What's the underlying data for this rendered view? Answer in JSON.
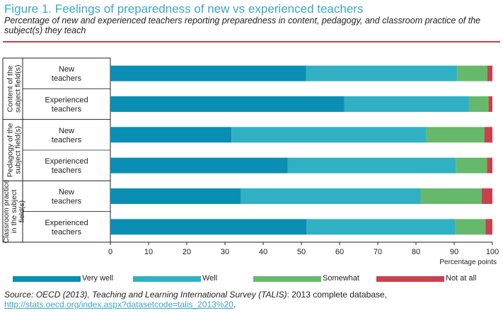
{
  "figure": {
    "title": "Figure 1. Feelings of preparedness of new vs experienced teachers",
    "subtitle": "Percentage of new and experienced teachers reporting preparedness in content, pedagogy, and classroom practice of the subject(s) they teach"
  },
  "chart_data": {
    "type": "bar",
    "orientation": "horizontal",
    "stacked": true,
    "groups": [
      {
        "name": "Content of the subject field(s)",
        "rows": [
          "New teachers",
          "Experienced teachers"
        ]
      },
      {
        "name": "Pedagogy of the subject field(s)",
        "rows": [
          "New teachers",
          "Experienced teachers"
        ]
      },
      {
        "name": "Classroom practice in the subject field(s)",
        "rows": [
          "New teachers",
          "Experienced teachers"
        ]
      }
    ],
    "categories": [
      "New teachers",
      "Experienced teachers",
      "New teachers",
      "Experienced teachers",
      "New teachers",
      "Experienced teachers"
    ],
    "series": [
      {
        "name": "Very well",
        "color": "#0b8eb3",
        "values": [
          51.2,
          61.2,
          31.7,
          46.4,
          34.2,
          51.3
        ]
      },
      {
        "name": "Well",
        "color": "#30b1c3",
        "values": [
          39.6,
          32.8,
          51.0,
          44.0,
          47.0,
          39.0
        ]
      },
      {
        "name": "Somewhat",
        "color": "#66b96b",
        "values": [
          7.9,
          5.0,
          15.2,
          8.2,
          16.0,
          7.9
        ]
      },
      {
        "name": "Not at all",
        "color": "#c9414f",
        "values": [
          1.3,
          1.0,
          2.1,
          1.4,
          2.8,
          1.8
        ]
      }
    ],
    "xlabel": "Percentage points",
    "xlim": [
      0,
      100
    ],
    "xticks": [
      0,
      10,
      20,
      30,
      40,
      50,
      60,
      70,
      80,
      90,
      100
    ],
    "grid": false,
    "legend_position": "bottom"
  },
  "source": {
    "prefix": "Source: OECD (2013), ",
    "title": "Teaching and Learning International Survey (TALIS)",
    "db": ": 2013 complete database, ",
    "url": "http://stats.oecd.org/index.aspx?datasetcode=talis_2013%20",
    "suffix": "."
  }
}
